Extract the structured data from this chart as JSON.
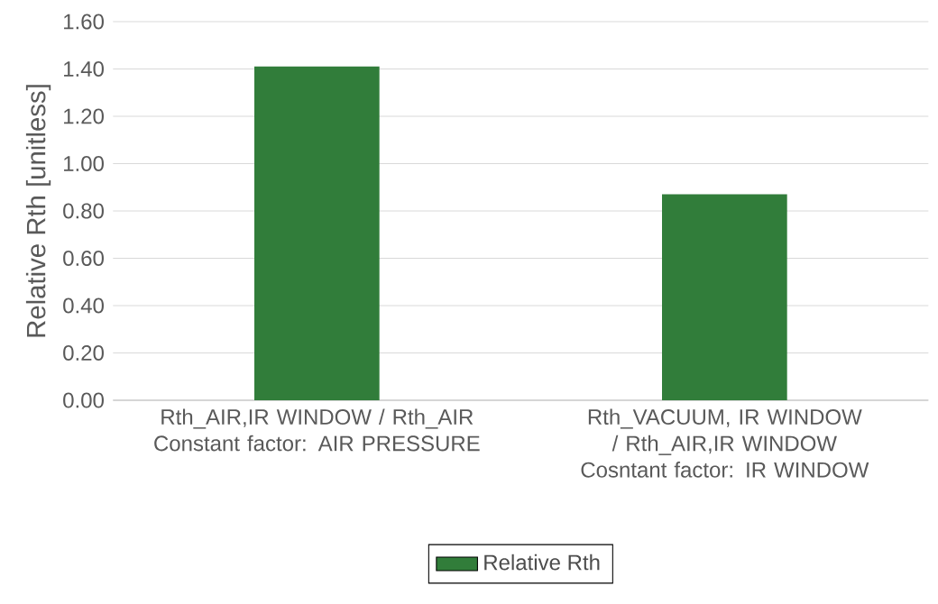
{
  "chart_data": {
    "type": "bar",
    "ylabel": "Relative Rth [unitless]",
    "categories": [
      "Rth_AIR,IR WINDOW / Rth_AIR Constant factor: AIR PRESSURE",
      "Rth_VACUUM, IR WINDOW / Rth_AIR,IR WINDOW Cosntant factor: IR WINDOW"
    ],
    "series": [
      {
        "name": "Relative Rth",
        "color": "#317d3a",
        "values": [
          1.41,
          0.87
        ]
      }
    ],
    "ylim": [
      0,
      1.6
    ],
    "yticks": [
      {
        "value": 0,
        "label": "0.00"
      },
      {
        "value": 0.2,
        "label": "0.20"
      },
      {
        "value": 0.4,
        "label": "0.40"
      },
      {
        "value": 0.6,
        "label": "0.60"
      },
      {
        "value": 0.8,
        "label": "0.80"
      },
      {
        "value": 1.0,
        "label": "1.00"
      },
      {
        "value": 1.2,
        "label": "1.20"
      },
      {
        "value": 1.4,
        "label": "1.40"
      },
      {
        "value": 1.6,
        "label": "1.60"
      }
    ],
    "grid": "y",
    "legend": "bottom"
  }
}
